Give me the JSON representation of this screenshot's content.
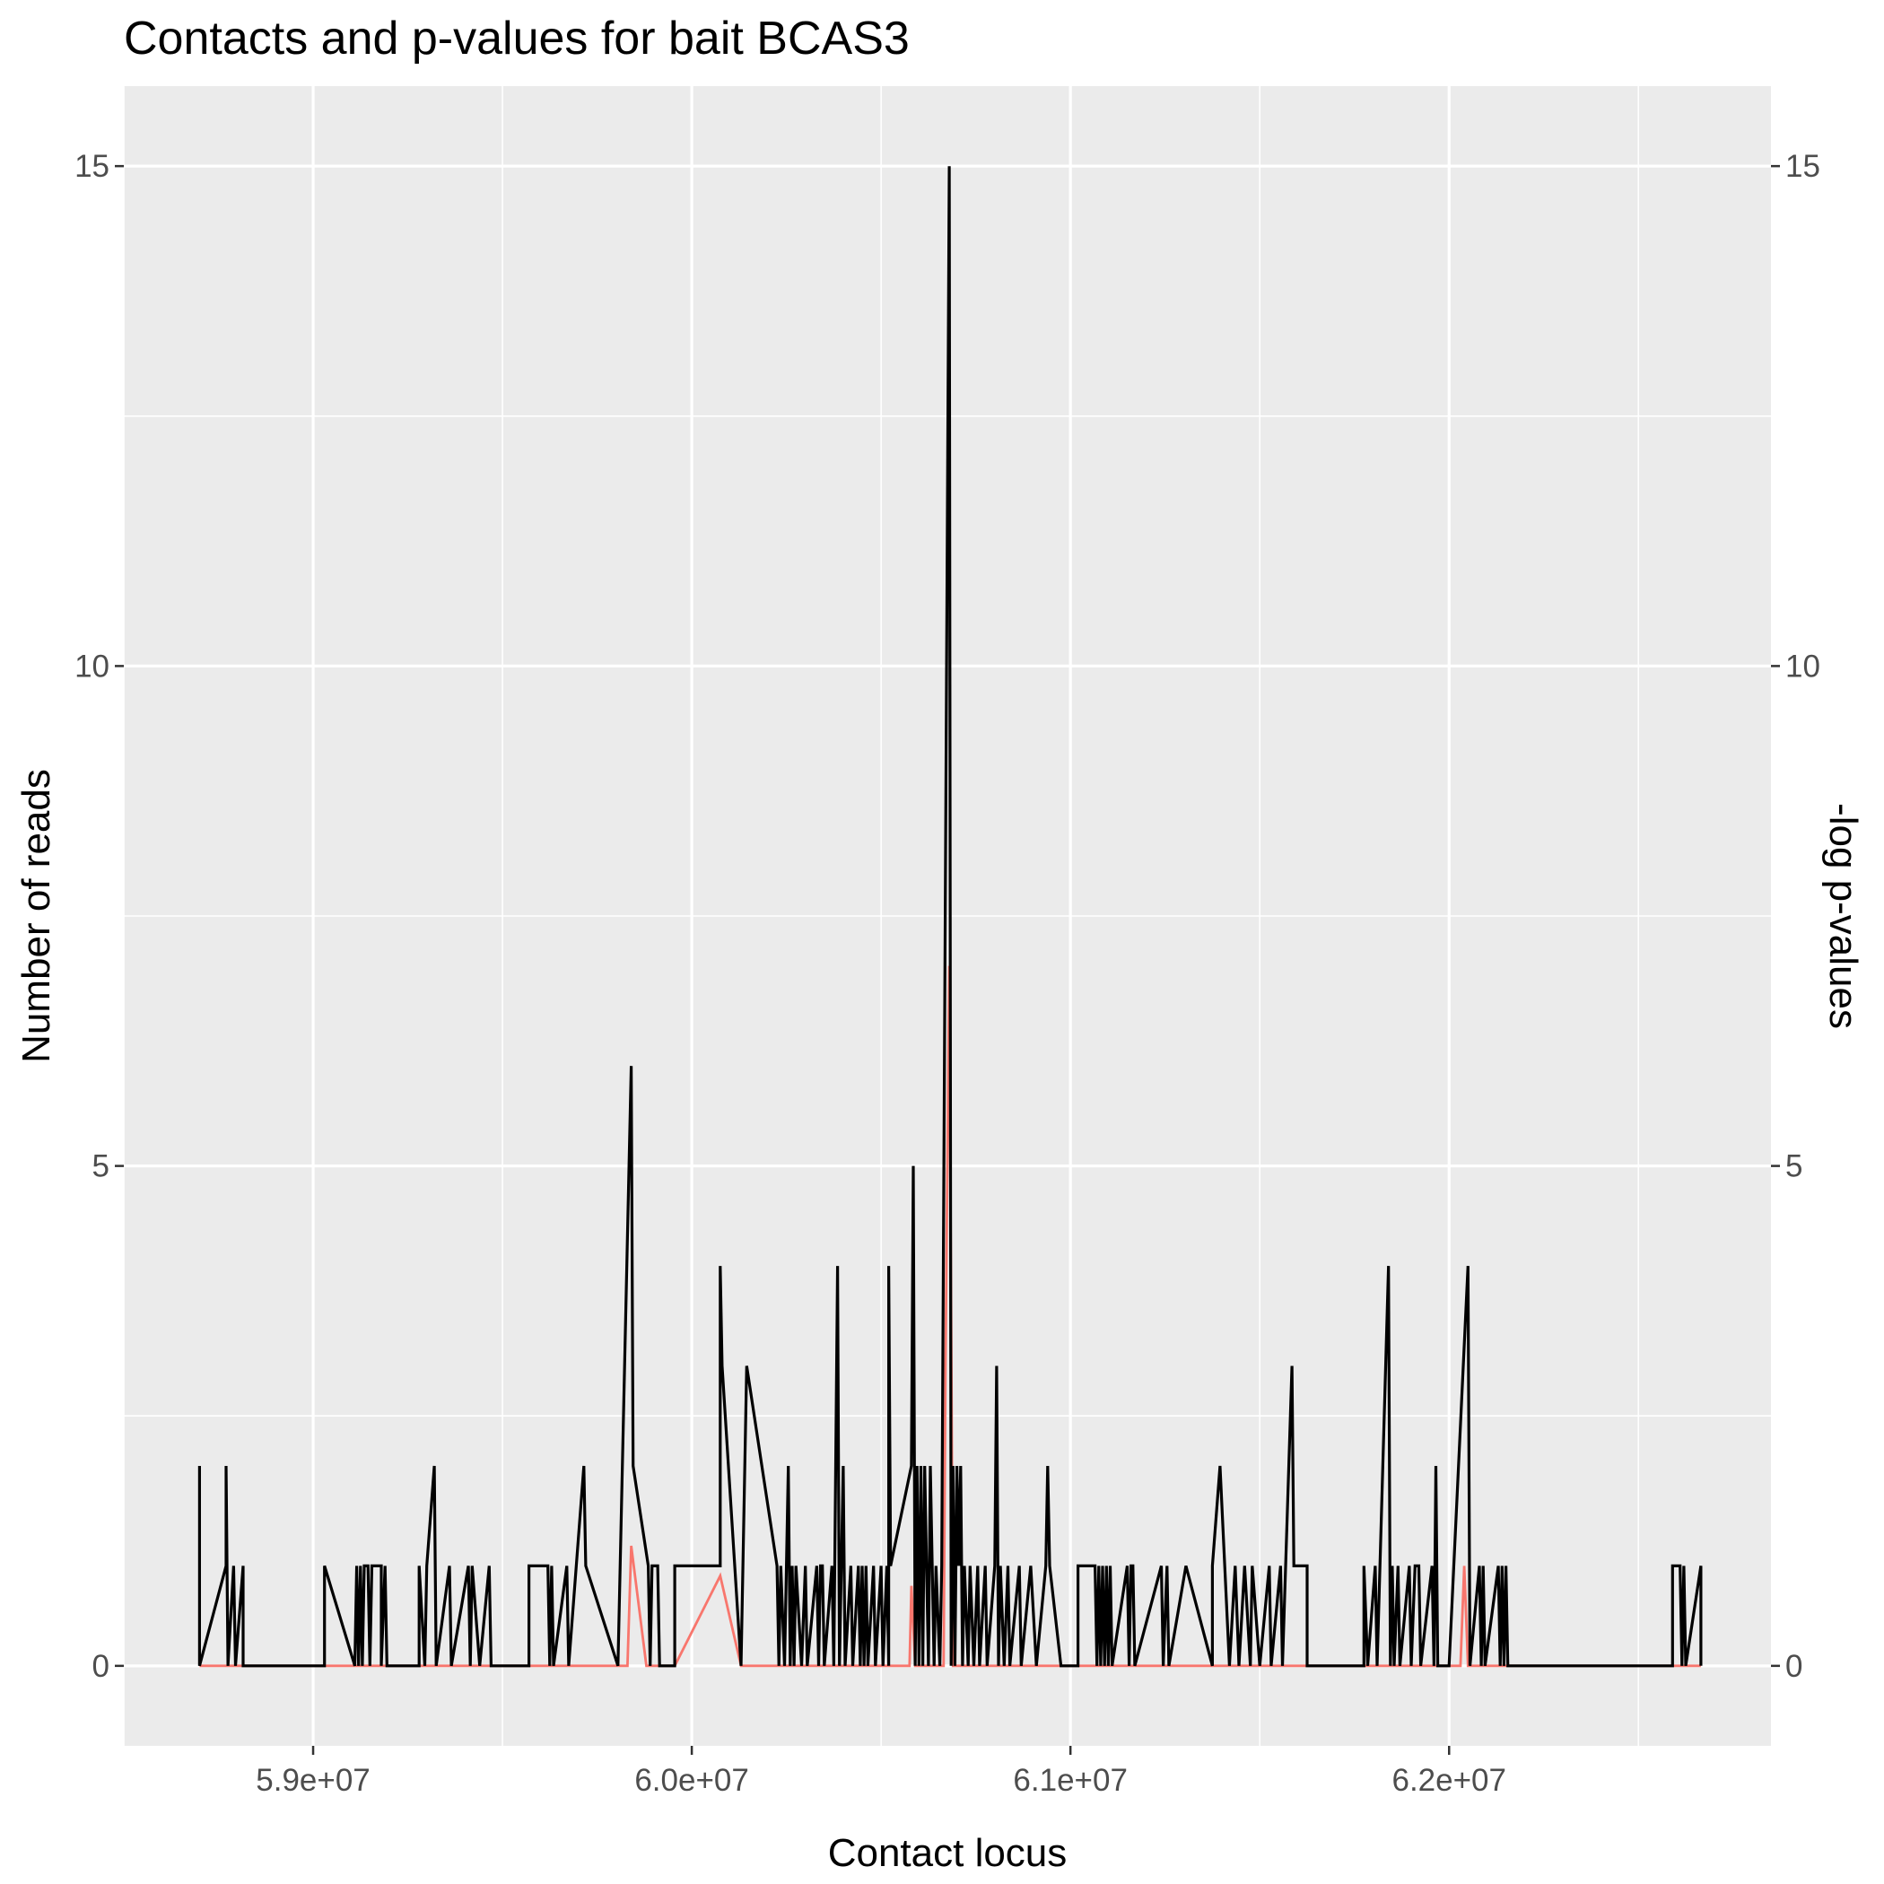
{
  "chart_data": {
    "type": "line",
    "title": "Contacts and p-values for bait BCAS3",
    "xlabel": "Contact locus",
    "ylabel": "Number of reads",
    "y2label": "-log p-values",
    "xlim": [
      58500000,
      62850000
    ],
    "ylim": [
      -0.8,
      15.8
    ],
    "y2lim": [
      -0.8,
      15.8
    ],
    "x_ticks": [
      59000000,
      60000000,
      61000000,
      62000000
    ],
    "x_tick_labels": [
      "5.9e+07",
      "6.0e+07",
      "6.1e+07",
      "6.2e+07"
    ],
    "y_ticks": [
      0,
      5,
      10,
      15
    ],
    "y_tick_labels": [
      "0",
      "5",
      "10",
      "15"
    ],
    "y2_ticks": [
      0,
      5,
      10,
      15
    ],
    "y2_tick_labels": [
      "0",
      "5",
      "10",
      "15"
    ],
    "grid": true,
    "legend": "none",
    "colors": {
      "reads": "#000000",
      "pvalues": "#f8766d",
      "panel": "#ebebeb",
      "grid": "#ffffff"
    },
    "series": [
      {
        "values": [
          [
            58700000,
            2
          ],
          [
            58700000,
            0
          ],
          [
            58770000,
            1
          ],
          [
            58770000,
            2
          ],
          [
            58775000,
            0
          ],
          [
            58790000,
            1
          ],
          [
            58795000,
            0
          ],
          [
            58815000,
            1
          ],
          [
            58815000,
            0
          ],
          [
            59030000,
            0
          ],
          [
            59030000,
            1
          ],
          [
            59110000,
            0
          ],
          [
            59115000,
            1
          ],
          [
            59120000,
            0
          ],
          [
            59125000,
            1
          ],
          [
            59130000,
            0
          ],
          [
            59135000,
            1
          ],
          [
            59145000,
            1
          ],
          [
            59150000,
            0
          ],
          [
            59155000,
            1
          ],
          [
            59180000,
            1
          ],
          [
            59180000,
            0
          ],
          [
            59190000,
            1
          ],
          [
            59195000,
            0
          ],
          [
            59280000,
            0
          ],
          [
            59280000,
            1
          ],
          [
            59295000,
            0
          ],
          [
            59300000,
            1
          ],
          [
            59320000,
            2
          ],
          [
            59325000,
            0
          ],
          [
            59360000,
            1
          ],
          [
            59365000,
            0
          ],
          [
            59410000,
            1
          ],
          [
            59415000,
            0
          ],
          [
            59420000,
            1
          ],
          [
            59440000,
            0
          ],
          [
            59465000,
            1
          ],
          [
            59470000,
            0
          ],
          [
            59570000,
            0
          ],
          [
            59570000,
            1
          ],
          [
            59620000,
            1
          ],
          [
            59625000,
            0
          ],
          [
            59630000,
            1
          ],
          [
            59635000,
            0
          ],
          [
            59670000,
            1
          ],
          [
            59675000,
            0
          ],
          [
            59715000,
            2
          ],
          [
            59720000,
            1
          ],
          [
            59805000,
            0
          ],
          [
            59840000,
            6
          ],
          [
            59845000,
            2
          ],
          [
            59885000,
            1
          ],
          [
            59890000,
            0
          ],
          [
            59895000,
            1
          ],
          [
            59910000,
            1
          ],
          [
            59915000,
            0
          ],
          [
            59955000,
            0
          ],
          [
            59955000,
            1
          ],
          [
            60075000,
            1
          ],
          [
            60075000,
            4
          ],
          [
            60080000,
            3
          ],
          [
            60130000,
            0
          ],
          [
            60145000,
            3
          ],
          [
            60225000,
            1
          ],
          [
            60230000,
            0
          ],
          [
            60235000,
            1
          ],
          [
            60245000,
            0
          ],
          [
            60250000,
            1
          ],
          [
            60255000,
            2
          ],
          [
            60260000,
            0
          ],
          [
            60265000,
            1
          ],
          [
            60270000,
            0
          ],
          [
            60275000,
            1
          ],
          [
            60290000,
            0
          ],
          [
            60300000,
            1
          ],
          [
            60305000,
            0
          ],
          [
            60330000,
            1
          ],
          [
            60335000,
            0
          ],
          [
            60340000,
            1
          ],
          [
            60345000,
            1
          ],
          [
            60350000,
            0
          ],
          [
            60370000,
            1
          ],
          [
            60375000,
            0
          ],
          [
            60385000,
            4
          ],
          [
            60390000,
            0
          ],
          [
            60395000,
            1
          ],
          [
            60400000,
            2
          ],
          [
            60405000,
            0
          ],
          [
            60420000,
            1
          ],
          [
            60425000,
            0
          ],
          [
            60440000,
            1
          ],
          [
            60445000,
            0
          ],
          [
            60450000,
            1
          ],
          [
            60455000,
            0
          ],
          [
            60460000,
            1
          ],
          [
            60465000,
            0
          ],
          [
            60480000,
            1
          ],
          [
            60485000,
            0
          ],
          [
            60500000,
            1
          ],
          [
            60505000,
            0
          ],
          [
            60515000,
            1
          ],
          [
            60520000,
            0
          ],
          [
            60520000,
            4
          ],
          [
            60525000,
            1
          ],
          [
            60580000,
            2
          ],
          [
            60585000,
            5
          ],
          [
            60590000,
            0
          ],
          [
            60595000,
            2
          ],
          [
            60600000,
            0
          ],
          [
            60605000,
            2
          ],
          [
            60610000,
            0
          ],
          [
            60615000,
            2
          ],
          [
            60625000,
            0
          ],
          [
            60630000,
            2
          ],
          [
            60635000,
            1
          ],
          [
            60640000,
            0
          ],
          [
            60645000,
            1
          ],
          [
            60655000,
            0
          ],
          [
            60660000,
            1
          ],
          [
            60680000,
            15
          ],
          [
            60685000,
            0
          ],
          [
            60690000,
            2
          ],
          [
            60695000,
            0
          ],
          [
            60700000,
            2
          ],
          [
            60705000,
            1
          ],
          [
            60710000,
            2
          ],
          [
            60715000,
            0
          ],
          [
            60720000,
            1
          ],
          [
            60730000,
            0
          ],
          [
            60735000,
            1
          ],
          [
            60745000,
            0
          ],
          [
            60755000,
            1
          ],
          [
            60760000,
            0
          ],
          [
            60775000,
            1
          ],
          [
            60780000,
            0
          ],
          [
            60800000,
            1
          ],
          [
            60805000,
            3
          ],
          [
            60810000,
            0
          ],
          [
            60815000,
            1
          ],
          [
            60825000,
            0
          ],
          [
            60835000,
            1
          ],
          [
            60840000,
            0
          ],
          [
            60865000,
            1
          ],
          [
            60870000,
            0
          ],
          [
            60895000,
            1
          ],
          [
            60910000,
            0
          ],
          [
            60935000,
            1
          ],
          [
            60940000,
            2
          ],
          [
            60945000,
            1
          ],
          [
            60975000,
            0
          ],
          [
            61020000,
            0
          ],
          [
            61020000,
            1
          ],
          [
            61065000,
            1
          ],
          [
            61070000,
            0
          ],
          [
            61075000,
            1
          ],
          [
            61080000,
            0
          ],
          [
            61085000,
            1
          ],
          [
            61090000,
            0
          ],
          [
            61095000,
            1
          ],
          [
            61100000,
            0
          ],
          [
            61105000,
            1
          ],
          [
            61110000,
            0
          ],
          [
            61150000,
            1
          ],
          [
            61155000,
            0
          ],
          [
            61160000,
            1
          ],
          [
            61165000,
            1
          ],
          [
            61170000,
            0
          ],
          [
            61240000,
            1
          ],
          [
            61245000,
            0
          ],
          [
            61255000,
            1
          ],
          [
            61260000,
            0
          ],
          [
            61305000,
            1
          ],
          [
            61375000,
            0
          ],
          [
            61375000,
            1
          ],
          [
            61395000,
            2
          ],
          [
            61420000,
            0
          ],
          [
            61435000,
            1
          ],
          [
            61445000,
            0
          ],
          [
            61460000,
            1
          ],
          [
            61475000,
            0
          ],
          [
            61480000,
            1
          ],
          [
            61500000,
            0
          ],
          [
            61525000,
            1
          ],
          [
            61530000,
            0
          ],
          [
            61555000,
            1
          ],
          [
            61560000,
            0
          ],
          [
            61585000,
            3
          ],
          [
            61590000,
            1
          ],
          [
            61625000,
            1
          ],
          [
            61625000,
            0
          ],
          [
            61775000,
            0
          ],
          [
            61775000,
            1
          ],
          [
            61785000,
            0
          ],
          [
            61805000,
            1
          ],
          [
            61810000,
            0
          ],
          [
            61840000,
            4
          ],
          [
            61845000,
            0
          ],
          [
            61850000,
            1
          ],
          [
            61855000,
            0
          ],
          [
            61865000,
            1
          ],
          [
            61870000,
            0
          ],
          [
            61895000,
            1
          ],
          [
            61900000,
            0
          ],
          [
            61910000,
            1
          ],
          [
            61920000,
            1
          ],
          [
            61925000,
            0
          ],
          [
            61955000,
            1
          ],
          [
            61960000,
            0
          ],
          [
            61965000,
            2
          ],
          [
            61970000,
            0
          ],
          [
            62000000,
            0
          ],
          [
            62050000,
            4
          ],
          [
            62055000,
            0
          ],
          [
            62080000,
            1
          ],
          [
            62085000,
            0
          ],
          [
            62090000,
            1
          ],
          [
            62095000,
            0
          ],
          [
            62130000,
            1
          ],
          [
            62135000,
            0
          ],
          [
            62140000,
            1
          ],
          [
            62145000,
            0
          ],
          [
            62150000,
            1
          ],
          [
            62155000,
            0
          ],
          [
            62590000,
            0
          ],
          [
            62590000,
            1
          ],
          [
            62610000,
            1
          ],
          [
            62615000,
            0
          ],
          [
            62620000,
            1
          ],
          [
            62625000,
            0
          ],
          [
            62665000,
            1
          ],
          [
            62665000,
            0
          ]
        ]
      },
      {
        "values": [
          [
            58700000,
            0
          ],
          [
            59830000,
            0
          ],
          [
            59840000,
            1.2
          ],
          [
            59880000,
            0
          ],
          [
            59955000,
            0
          ],
          [
            60075000,
            0.9
          ],
          [
            60130000,
            0
          ],
          [
            60575000,
            0
          ],
          [
            60580000,
            0.8
          ],
          [
            60590000,
            0
          ],
          [
            60665000,
            0
          ],
          [
            60670000,
            3
          ],
          [
            60680000,
            7
          ],
          [
            60690000,
            0
          ],
          [
            62030000,
            0
          ],
          [
            62040000,
            1
          ],
          [
            62050000,
            0
          ],
          [
            62665000,
            0
          ]
        ]
      }
    ]
  }
}
